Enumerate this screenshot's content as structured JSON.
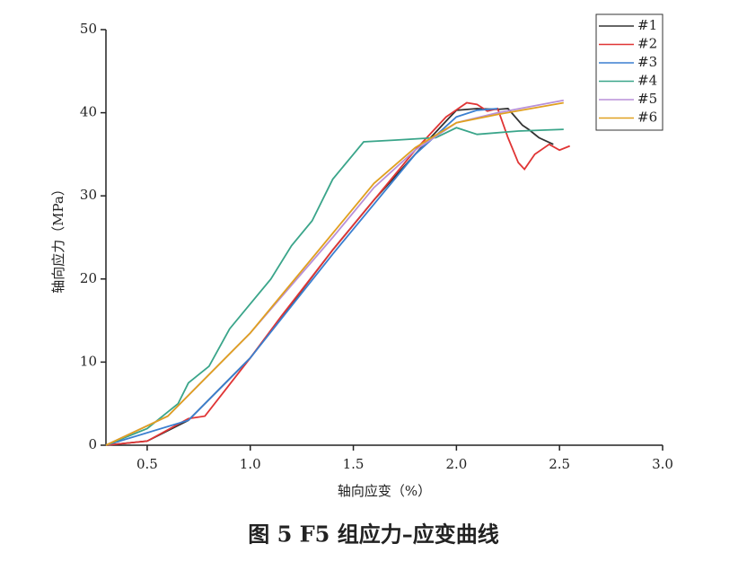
{
  "chart_data": {
    "type": "line",
    "title": "图 5  F5 组应力–应变曲线",
    "x_label": "轴向应变（%）",
    "y_label": "轴向应力（MPa）",
    "xlim": [
      0.3,
      3.0
    ],
    "ylim": [
      0,
      50
    ],
    "xticks": [
      0.5,
      {
        "value": 1,
        "label": "1.0"
      },
      1.5,
      {
        "value": 2,
        "label": "2.0"
      },
      2.5,
      {
        "value": 3,
        "label": "3.0"
      }
    ],
    "yticks": [
      0,
      10,
      20,
      30,
      40,
      50
    ],
    "legend": "upper right",
    "series": [
      {
        "name": "#1",
        "color": "#333333",
        "x": [
          0.3,
          0.5,
          0.7,
          1.0,
          1.2,
          1.4,
          1.6,
          1.8,
          1.95,
          2.0,
          2.1,
          2.2,
          2.25,
          2.32,
          2.35,
          2.4,
          2.47
        ],
        "values": [
          0,
          0.5,
          3,
          10.5,
          17,
          23.5,
          29.5,
          35,
          39,
          40.3,
          40.5,
          40.4,
          40.5,
          38.5,
          38,
          37,
          36.2
        ]
      },
      {
        "name": "#2",
        "color": "#e03535",
        "x": [
          0.3,
          0.5,
          0.7,
          0.78,
          1.0,
          1.15,
          1.4,
          1.6,
          1.8,
          1.95,
          2.05,
          2.1,
          2.15,
          2.2,
          2.25,
          2.3,
          2.33,
          2.38,
          2.45,
          2.5,
          2.55
        ],
        "values": [
          0,
          0.5,
          3.2,
          3.5,
          10.5,
          15.5,
          23.5,
          29.5,
          35.5,
          39.5,
          41.2,
          41,
          40.2,
          40.5,
          37,
          34,
          33.2,
          35,
          36.2,
          35.5,
          36
        ]
      },
      {
        "name": "#3",
        "color": "#3a7fd0",
        "x": [
          0.3,
          0.7,
          1.0,
          1.4,
          1.8,
          2.0,
          2.1,
          2.2
        ],
        "values": [
          0,
          3,
          10.5,
          23,
          35,
          39.5,
          40.3,
          40.5
        ]
      },
      {
        "name": "#4",
        "color": "#3aa58a",
        "x": [
          0.3,
          0.5,
          0.65,
          0.7,
          0.8,
          0.9,
          1.0,
          1.1,
          1.2,
          1.3,
          1.4,
          1.5,
          1.55,
          1.7,
          1.9,
          2.0,
          2.1,
          2.3,
          2.52
        ],
        "values": [
          0,
          2,
          5,
          7.5,
          9.5,
          14,
          17,
          20,
          24,
          27,
          32,
          35,
          36.5,
          36.7,
          37,
          38.2,
          37.4,
          37.8,
          38
        ]
      },
      {
        "name": "#5",
        "color": "#b890d8",
        "x": [
          0.3,
          0.6,
          1.0,
          1.4,
          1.6,
          1.8,
          2.0,
          2.2,
          2.52
        ],
        "values": [
          0,
          3.5,
          13.5,
          25,
          31,
          35.5,
          38.8,
          40,
          41.5
        ]
      },
      {
        "name": "#6",
        "color": "#e0a020",
        "x": [
          0.3,
          0.6,
          1.0,
          1.4,
          1.6,
          1.8,
          2.0,
          2.2,
          2.52
        ],
        "values": [
          0,
          3.5,
          13.5,
          25.5,
          31.5,
          35.8,
          38.8,
          39.8,
          41.2
        ]
      }
    ]
  }
}
